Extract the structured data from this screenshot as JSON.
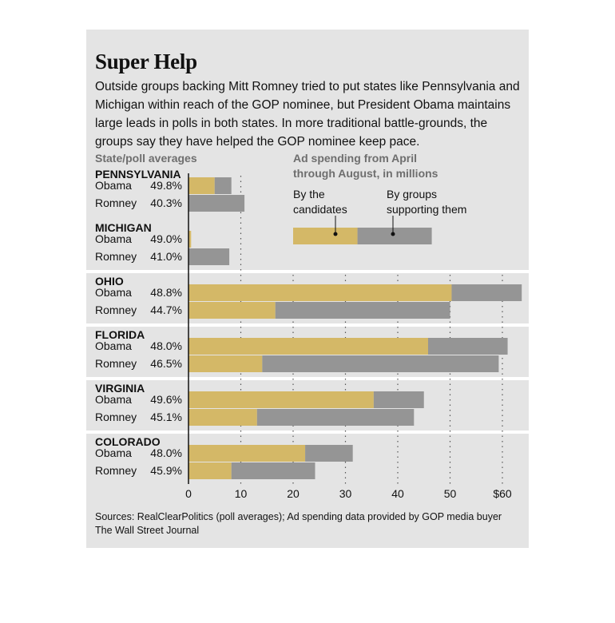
{
  "title": "Super Help",
  "subtitle": "Outside groups backing Mitt Romney tried to put states like Pennsylvania and Michigan within reach of the GOP nominee, but President Obama maintains large leads in polls in both states. In more traditional battle-grounds, the groups say they have helped the GOP nominee keep pace.",
  "sources": "Sources: RealClearPolitics (poll averages); Ad spending data provided by GOP media buyer",
  "credit": "The Wall Street Journal",
  "colors": {
    "candidates": "#d4b867",
    "groups": "#959595",
    "panel": "#e4e4e4"
  },
  "chart_data": {
    "type": "bar",
    "orientation": "horizontal",
    "stacked": true,
    "poll_header": "State/poll averages",
    "spending_header_lines": [
      "Ad spending from April",
      "through August, in millions"
    ],
    "legend": {
      "candidates_lines": [
        "By the",
        "candidates"
      ],
      "groups_lines": [
        "By groups",
        "supporting them"
      ]
    },
    "xlim": [
      0,
      64
    ],
    "x_ticks": [
      0,
      10,
      20,
      30,
      40,
      50,
      60
    ],
    "x_tick_labels": [
      "0",
      "10",
      "20",
      "30",
      "40",
      "50",
      "$60"
    ],
    "series": [
      {
        "name": "By the candidates",
        "key": "candidates"
      },
      {
        "name": "By groups supporting them",
        "key": "groups"
      }
    ],
    "states": [
      {
        "name": "PENNSYLVANIA",
        "rows": [
          {
            "candidate": "Obama",
            "poll": "49.8%",
            "candidates": 5,
            "groups": 3.2
          },
          {
            "candidate": "Romney",
            "poll": "40.3%",
            "candidates": 0,
            "groups": 10.7
          }
        ]
      },
      {
        "name": "MICHIGAN",
        "rows": [
          {
            "candidate": "Obama",
            "poll": "49.0%",
            "candidates": 0.5,
            "groups": 0
          },
          {
            "candidate": "Romney",
            "poll": "41.0%",
            "candidates": 0,
            "groups": 7.8
          }
        ]
      },
      {
        "name": "OHIO",
        "rows": [
          {
            "candidate": "Obama",
            "poll": "48.8%",
            "candidates": 50.3,
            "groups": 13.4
          },
          {
            "candidate": "Romney",
            "poll": "44.7%",
            "candidates": 16.6,
            "groups": 33.4
          }
        ]
      },
      {
        "name": "FLORIDA",
        "rows": [
          {
            "candidate": "Obama",
            "poll": "48.0%",
            "candidates": 45.8,
            "groups": 15.2
          },
          {
            "candidate": "Romney",
            "poll": "46.5%",
            "candidates": 14.1,
            "groups": 45.2
          }
        ]
      },
      {
        "name": "VIRGINIA",
        "rows": [
          {
            "candidate": "Obama",
            "poll": "49.6%",
            "candidates": 35.4,
            "groups": 9.6
          },
          {
            "candidate": "Romney",
            "poll": "45.1%",
            "candidates": 13.1,
            "groups": 30
          }
        ]
      },
      {
        "name": "COLORADO",
        "rows": [
          {
            "candidate": "Obama",
            "poll": "48.0%",
            "candidates": 22.3,
            "groups": 9.1
          },
          {
            "candidate": "Romney",
            "poll": "45.9%",
            "candidates": 8.2,
            "groups": 16
          }
        ]
      }
    ]
  }
}
